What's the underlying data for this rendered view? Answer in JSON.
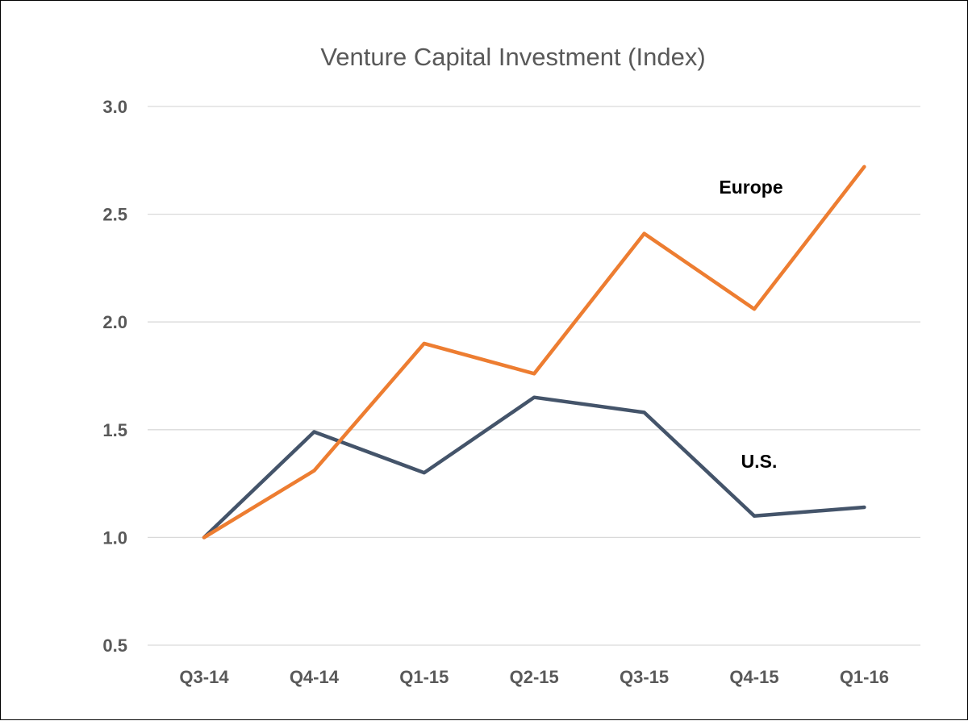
{
  "chart_data": {
    "type": "line",
    "title": "Venture Capital Investment (Index)",
    "xlabel": "",
    "ylabel": "",
    "categories": [
      "Q3-14",
      "Q4-14",
      "Q1-15",
      "Q2-15",
      "Q3-15",
      "Q4-15",
      "Q1-16"
    ],
    "ylim": [
      0.5,
      3.0
    ],
    "yticks": [
      "0.5",
      "1.0",
      "1.5",
      "2.0",
      "2.5",
      "3.0"
    ],
    "grid": true,
    "legend": "none",
    "series": [
      {
        "name": "Europe",
        "color": "#ED7D31",
        "values": [
          1.0,
          1.31,
          1.9,
          1.76,
          2.41,
          2.06,
          2.72
        ]
      },
      {
        "name": "U.S.",
        "color": "#44546A",
        "values": [
          1.0,
          1.49,
          1.3,
          1.65,
          1.58,
          1.1,
          1.14
        ]
      }
    ]
  }
}
